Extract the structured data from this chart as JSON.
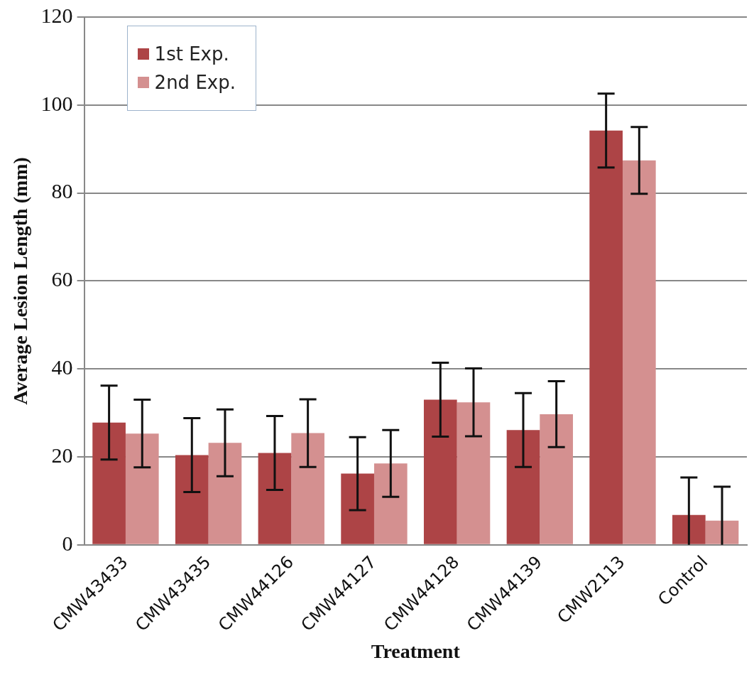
{
  "chart_data": {
    "type": "bar",
    "xlabel": "Treatment",
    "ylabel": "Average Lesion Length (mm)",
    "categories": [
      "CMW43433",
      "CMW43435",
      "CMW44126",
      "CMW44127",
      "CMW44128",
      "CMW44139",
      "CMW2113",
      "Control"
    ],
    "series": [
      {
        "name": "1st Exp.",
        "color": "#ad4446",
        "values": [
          27.8,
          20.4,
          20.9,
          16.2,
          33.0,
          26.1,
          94.2,
          6.8
        ],
        "errors": [
          8.4,
          8.4,
          8.4,
          8.3,
          8.4,
          8.4,
          8.4,
          [
            0,
            15.3
          ]
        ]
      },
      {
        "name": "2nd Exp.",
        "color": "#d49090",
        "values": [
          25.3,
          23.2,
          25.4,
          18.5,
          32.4,
          29.7,
          87.4,
          5.5
        ],
        "errors": [
          7.7,
          7.6,
          7.7,
          7.6,
          7.7,
          7.5,
          7.6,
          [
            0,
            13.2
          ]
        ]
      }
    ],
    "ylim": [
      0,
      120
    ],
    "yticks": [
      0,
      20,
      40,
      60,
      80,
      100,
      120
    ],
    "grid": "y",
    "legend": "top left"
  }
}
